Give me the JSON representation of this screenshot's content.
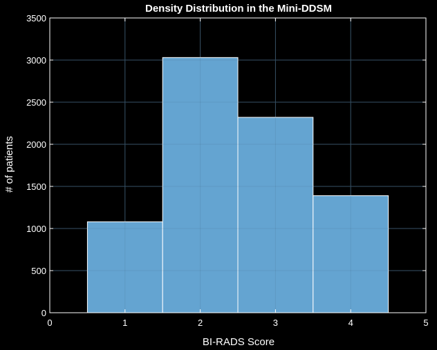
{
  "chart_data": {
    "type": "bar",
    "title": "Density Distribution in the Mini-DDSM",
    "xlabel": "BI-RADS Score",
    "ylabel": "# of patients",
    "categories": [
      "1",
      "2",
      "3",
      "4"
    ],
    "bins": [
      {
        "center": 1,
        "value": 1080
      },
      {
        "center": 2,
        "value": 3030
      },
      {
        "center": 3,
        "value": 2320
      },
      {
        "center": 4,
        "value": 1390
      }
    ],
    "xlim": [
      0,
      5
    ],
    "ylim": [
      0,
      3500
    ],
    "xticks": [
      "0",
      "1",
      "2",
      "3",
      "4",
      "5"
    ],
    "yticks": [
      "0",
      "500",
      "1000",
      "1500",
      "2000",
      "2500",
      "3000",
      "3500"
    ],
    "grid": true,
    "colors": {
      "background": "#000000",
      "bar_fill": "#67a9d8",
      "bar_edge": "#ffffff",
      "axes": "#ffffff",
      "grid": "#3c5a70",
      "text": "#ffffff"
    }
  }
}
